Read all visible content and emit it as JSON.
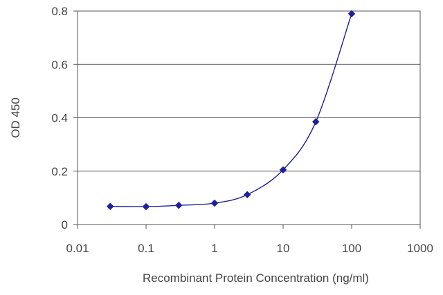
{
  "chart_data": {
    "type": "line",
    "x_scale": "log",
    "xlabel": "Recombinant Protein Concentration (ng/ml)",
    "ylabel": "OD 450",
    "xlim": [
      0.01,
      1000
    ],
    "ylim": [
      0,
      0.8
    ],
    "x_ticks": [
      0.01,
      0.1,
      1,
      10,
      100,
      1000
    ],
    "x_tick_labels": [
      "0.01",
      "0.1",
      "1",
      "10",
      "100",
      "1000"
    ],
    "y_ticks": [
      0,
      0.2,
      0.4,
      0.6,
      0.8
    ],
    "y_tick_labels": [
      "0",
      "0.2",
      "0.4",
      "0.6",
      "0.8"
    ],
    "grid": "horizontal",
    "series": [
      {
        "x": [
          0.03,
          0.1,
          0.3,
          1,
          3,
          10,
          30,
          100
        ],
        "y": [
          0.068,
          0.067,
          0.072,
          0.08,
          0.112,
          0.205,
          0.385,
          0.79
        ],
        "color": "#1f1f9e"
      }
    ]
  }
}
